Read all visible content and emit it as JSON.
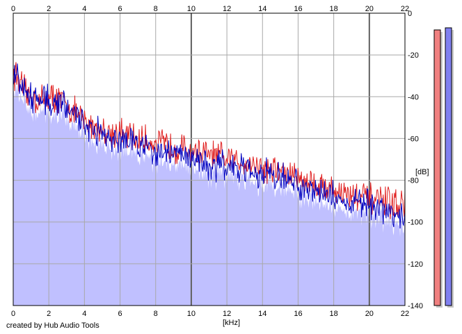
{
  "chart_data": {
    "type": "area",
    "xlabel": "[kHz]",
    "ylabel": "[dB]",
    "xlim": [
      0,
      22
    ],
    "ylim": [
      -140,
      0
    ],
    "x_ticks": [
      0,
      2,
      4,
      6,
      8,
      10,
      12,
      14,
      16,
      18,
      20,
      22
    ],
    "y_ticks": [
      0,
      -20,
      -40,
      -60,
      -80,
      -100,
      -120,
      -140
    ],
    "grid": true,
    "series": [
      {
        "color": "#e02020",
        "points": [
          [
            0.0,
            -28
          ],
          [
            0.25,
            -31
          ],
          [
            0.5,
            -36
          ],
          [
            0.75,
            -39
          ],
          [
            1.0,
            -40
          ],
          [
            1.5,
            -42
          ],
          [
            2.0,
            -40
          ],
          [
            2.5,
            -41
          ],
          [
            3.0,
            -44
          ],
          [
            3.5,
            -48
          ],
          [
            4.0,
            -52
          ],
          [
            4.5,
            -54
          ],
          [
            5.0,
            -56
          ],
          [
            5.5,
            -57
          ],
          [
            6.0,
            -58
          ],
          [
            6.5,
            -59
          ],
          [
            7.0,
            -61
          ],
          [
            7.5,
            -61
          ],
          [
            8.0,
            -62
          ],
          [
            8.5,
            -63
          ],
          [
            9.0,
            -64
          ],
          [
            9.5,
            -65
          ],
          [
            10.0,
            -66
          ],
          [
            10.5,
            -67
          ],
          [
            11.0,
            -68
          ],
          [
            11.5,
            -69
          ],
          [
            12.0,
            -70
          ],
          [
            12.5,
            -71
          ],
          [
            13.0,
            -71
          ],
          [
            13.5,
            -72
          ],
          [
            14.0,
            -74
          ],
          [
            14.5,
            -75
          ],
          [
            15.0,
            -76
          ],
          [
            15.5,
            -77
          ],
          [
            16.0,
            -79
          ],
          [
            16.5,
            -80
          ],
          [
            17.0,
            -82
          ],
          [
            17.5,
            -83
          ],
          [
            18.0,
            -85
          ],
          [
            18.5,
            -86
          ],
          [
            19.0,
            -87
          ],
          [
            19.5,
            -88
          ],
          [
            20.0,
            -89
          ],
          [
            20.5,
            -90
          ],
          [
            21.0,
            -91
          ],
          [
            21.5,
            -91
          ],
          [
            22.0,
            -92
          ]
        ]
      },
      {
        "color": "#0000c0",
        "points": [
          [
            0.0,
            -27
          ],
          [
            0.25,
            -30
          ],
          [
            0.5,
            -36
          ],
          [
            0.75,
            -39
          ],
          [
            1.0,
            -40
          ],
          [
            1.5,
            -42
          ],
          [
            2.0,
            -41
          ],
          [
            2.5,
            -42
          ],
          [
            3.0,
            -45
          ],
          [
            3.5,
            -49
          ],
          [
            4.0,
            -53
          ],
          [
            4.5,
            -56
          ],
          [
            5.0,
            -57
          ],
          [
            5.5,
            -59
          ],
          [
            6.0,
            -60
          ],
          [
            6.5,
            -62
          ],
          [
            7.0,
            -63
          ],
          [
            7.5,
            -64
          ],
          [
            8.0,
            -65
          ],
          [
            8.5,
            -66
          ],
          [
            9.0,
            -67
          ],
          [
            9.5,
            -68
          ],
          [
            10.0,
            -69
          ],
          [
            10.5,
            -70
          ],
          [
            11.0,
            -72
          ],
          [
            11.5,
            -73
          ],
          [
            12.0,
            -74
          ],
          [
            12.5,
            -75
          ],
          [
            13.0,
            -75
          ],
          [
            13.5,
            -76
          ],
          [
            14.0,
            -77
          ],
          [
            14.5,
            -78
          ],
          [
            15.0,
            -79
          ],
          [
            15.5,
            -80
          ],
          [
            16.0,
            -82
          ],
          [
            16.5,
            -83
          ],
          [
            17.0,
            -85
          ],
          [
            17.5,
            -86
          ],
          [
            18.0,
            -88
          ],
          [
            18.5,
            -90
          ],
          [
            19.0,
            -91
          ],
          [
            19.5,
            -91
          ],
          [
            20.0,
            -93
          ],
          [
            20.5,
            -94
          ],
          [
            21.0,
            -95
          ],
          [
            21.5,
            -96
          ],
          [
            22.0,
            -97
          ]
        ]
      }
    ],
    "fill_color": "#c0c0ff",
    "meters": [
      {
        "color": "#f08080",
        "value": -8
      },
      {
        "color": "#8080f0",
        "value": -7
      }
    ]
  },
  "footer": {
    "credit": "created by Hub Audio Tools"
  }
}
